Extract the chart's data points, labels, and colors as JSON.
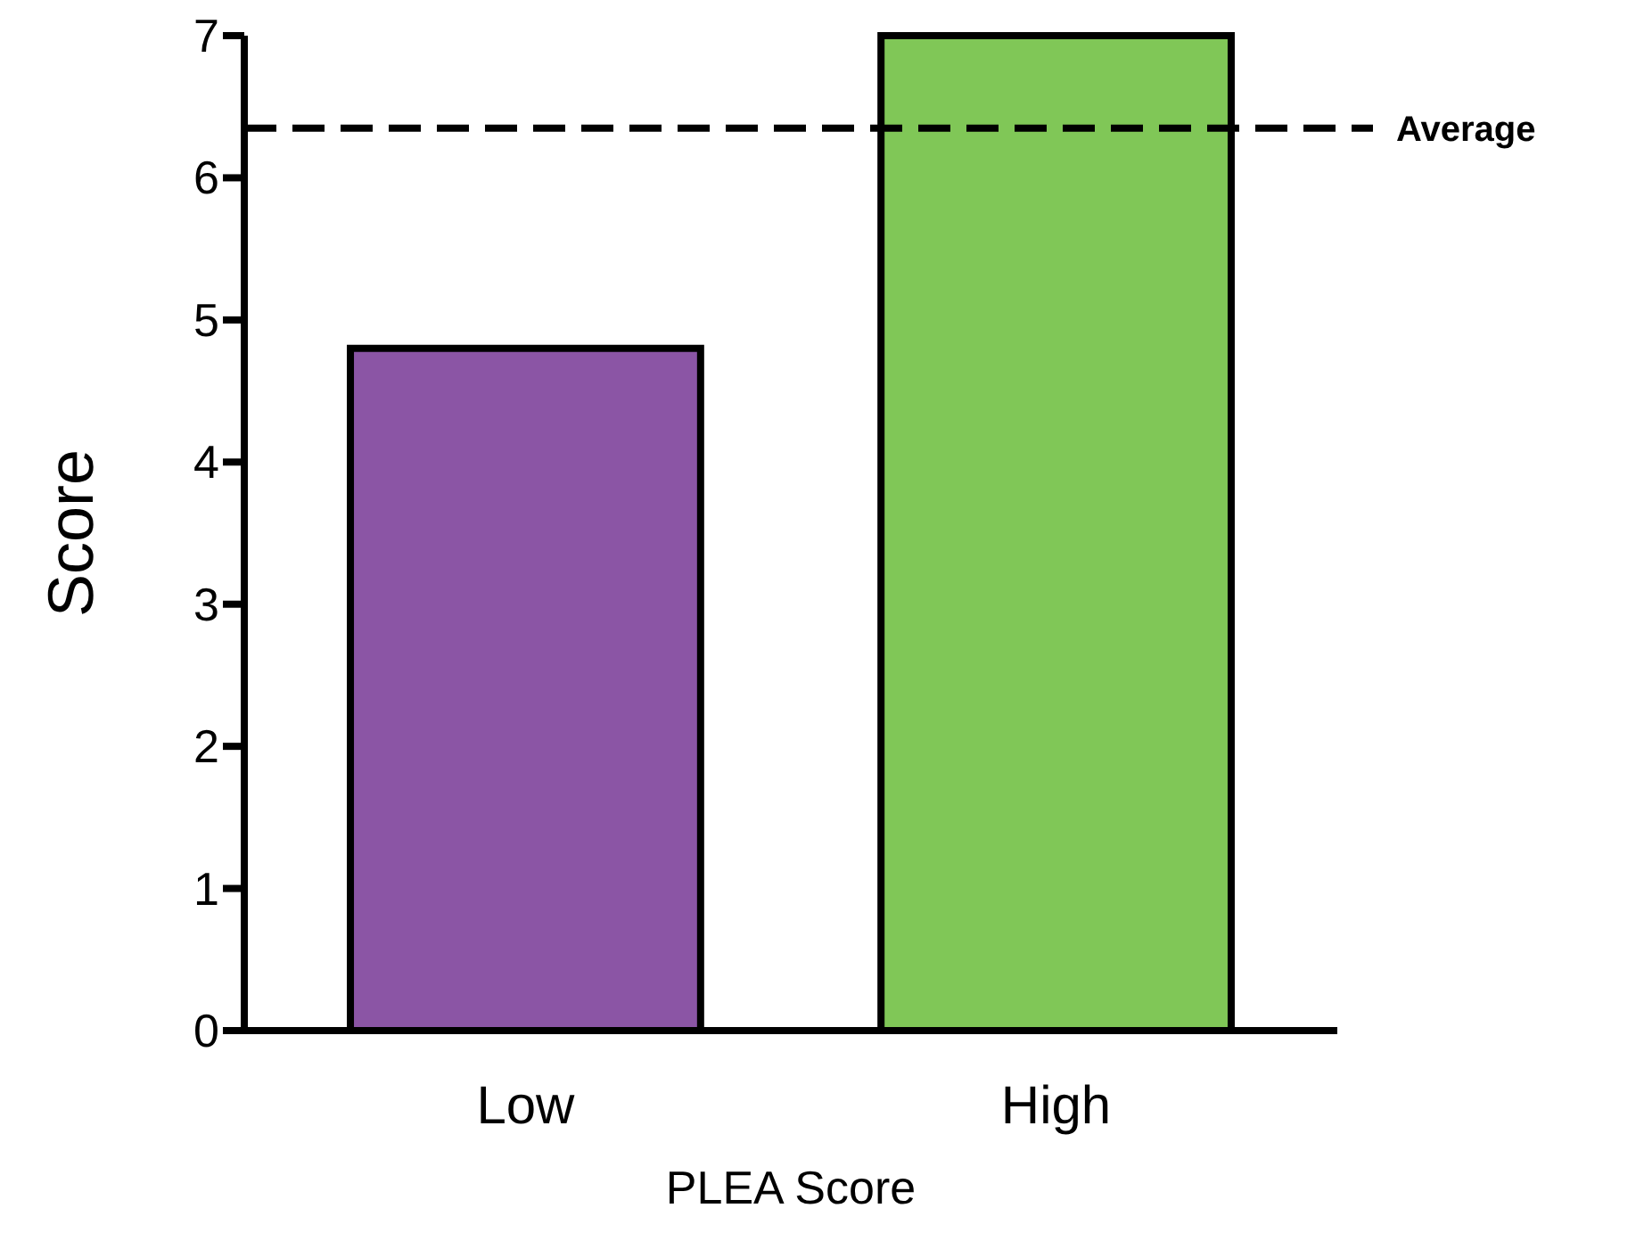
{
  "chart_data": {
    "type": "bar",
    "xlabel": "PLEA Score",
    "ylabel": "Score",
    "categories": [
      "Low",
      "High"
    ],
    "values": [
      4.8,
      7.0
    ],
    "colors": [
      "#8b55a5",
      "#80c757"
    ],
    "ylim": [
      0,
      7
    ],
    "yticks": [
      0,
      1,
      2,
      3,
      4,
      5,
      6,
      7
    ],
    "grid": false,
    "ref_lines": [
      {
        "axis": "y",
        "value": 6.35,
        "label": "Average",
        "line_style": "dashed",
        "color": "#000000"
      }
    ]
  }
}
